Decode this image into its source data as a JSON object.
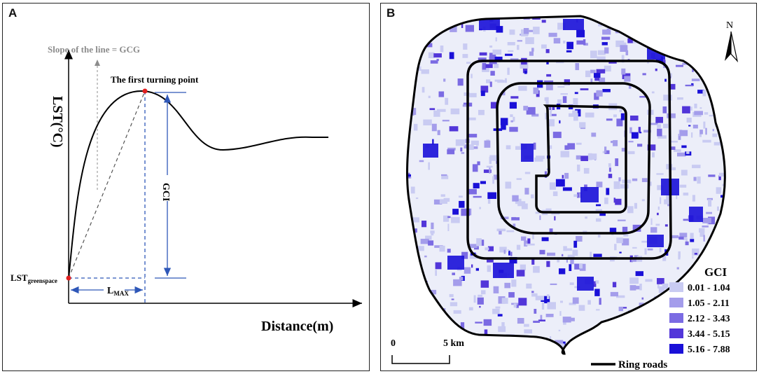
{
  "panel_a": {
    "label": "A",
    "y_axis_label": "LST(°C)",
    "x_axis_label": "Distance(m)",
    "slope_note": "Slope of the line = GCG",
    "turning_point_label": "The first turning point",
    "gci_label": "GCI",
    "origin_label_main": "LST",
    "origin_label_sub": "greenspace",
    "lmax_main": "L",
    "lmax_sub": "MAX",
    "colors": {
      "curve": "#000000",
      "dim_lines": "#2e57b8",
      "points": "#e02020",
      "note": "#8c8c8c"
    }
  },
  "panel_b": {
    "label": "B",
    "north_label": "N",
    "legend_title": "GCI",
    "legend": [
      {
        "label": "0.01 - 1.04",
        "color": "#c9cbf2"
      },
      {
        "label": "1.05 - 2.11",
        "color": "#a49deb"
      },
      {
        "label": "2.12 - 3.43",
        "color": "#7b6be3"
      },
      {
        "label": "3.44 - 5.15",
        "color": "#5236d9"
      },
      {
        "label": "5.16 - 7.88",
        "color": "#1a10d8"
      }
    ],
    "ring_roads_label": "Ring roads",
    "scale_start": "0",
    "scale_end": "5 km"
  }
}
